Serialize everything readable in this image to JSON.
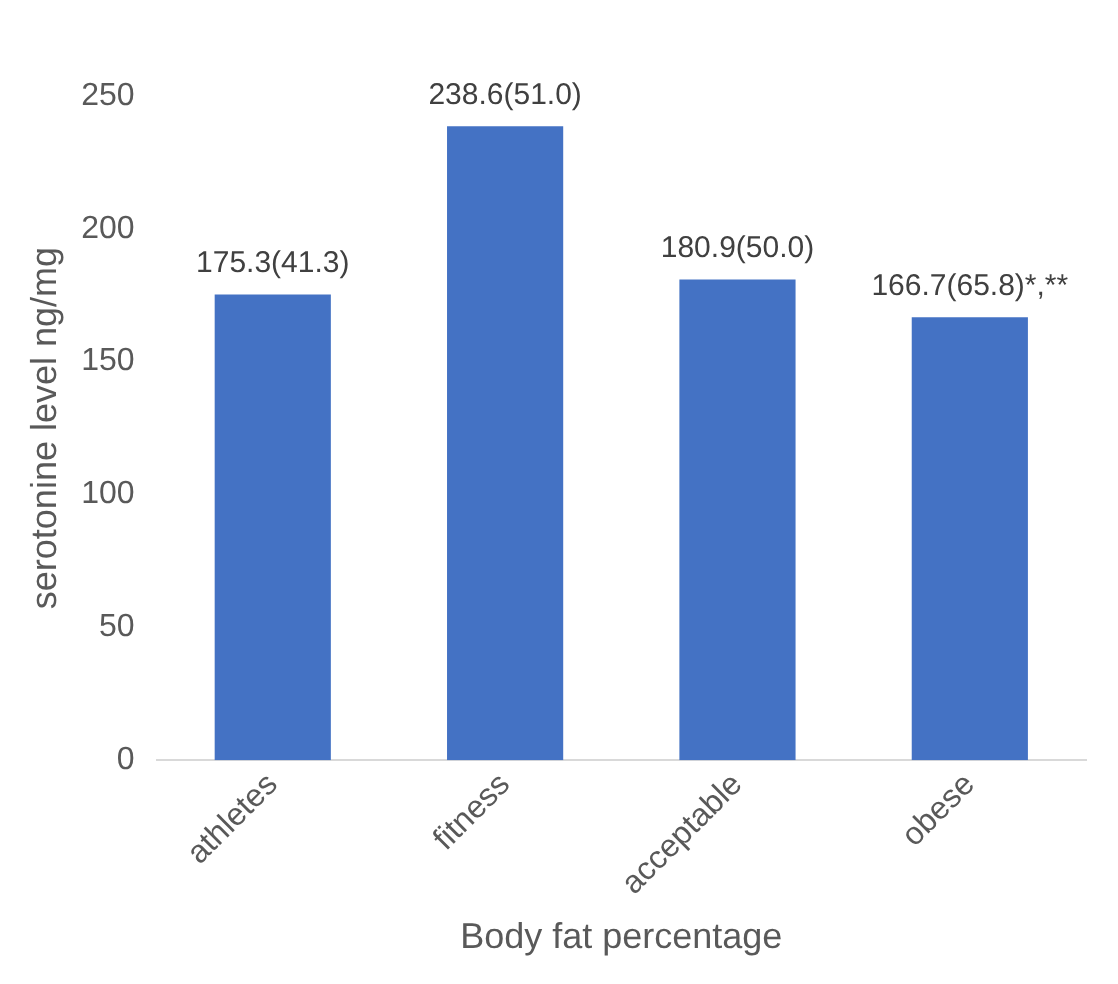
{
  "chart_data": {
    "type": "bar",
    "xlabel": "Body fat percentage",
    "ylabel": "serotonine level ng/mg",
    "categories": [
      "athletes",
      "fitness",
      "acceptable",
      "obese"
    ],
    "values": [
      175.3,
      238.6,
      180.9,
      166.7
    ],
    "value_labels": [
      "175.3(41.3)",
      "238.6(51.0)",
      "180.9(50.0)",
      "166.7(65.8)*,**"
    ],
    "color": "#4472c4",
    "ylim": [
      0,
      250
    ],
    "yticks": [
      0,
      50,
      100,
      150,
      200,
      250
    ],
    "grid": false,
    "legend": false
  }
}
